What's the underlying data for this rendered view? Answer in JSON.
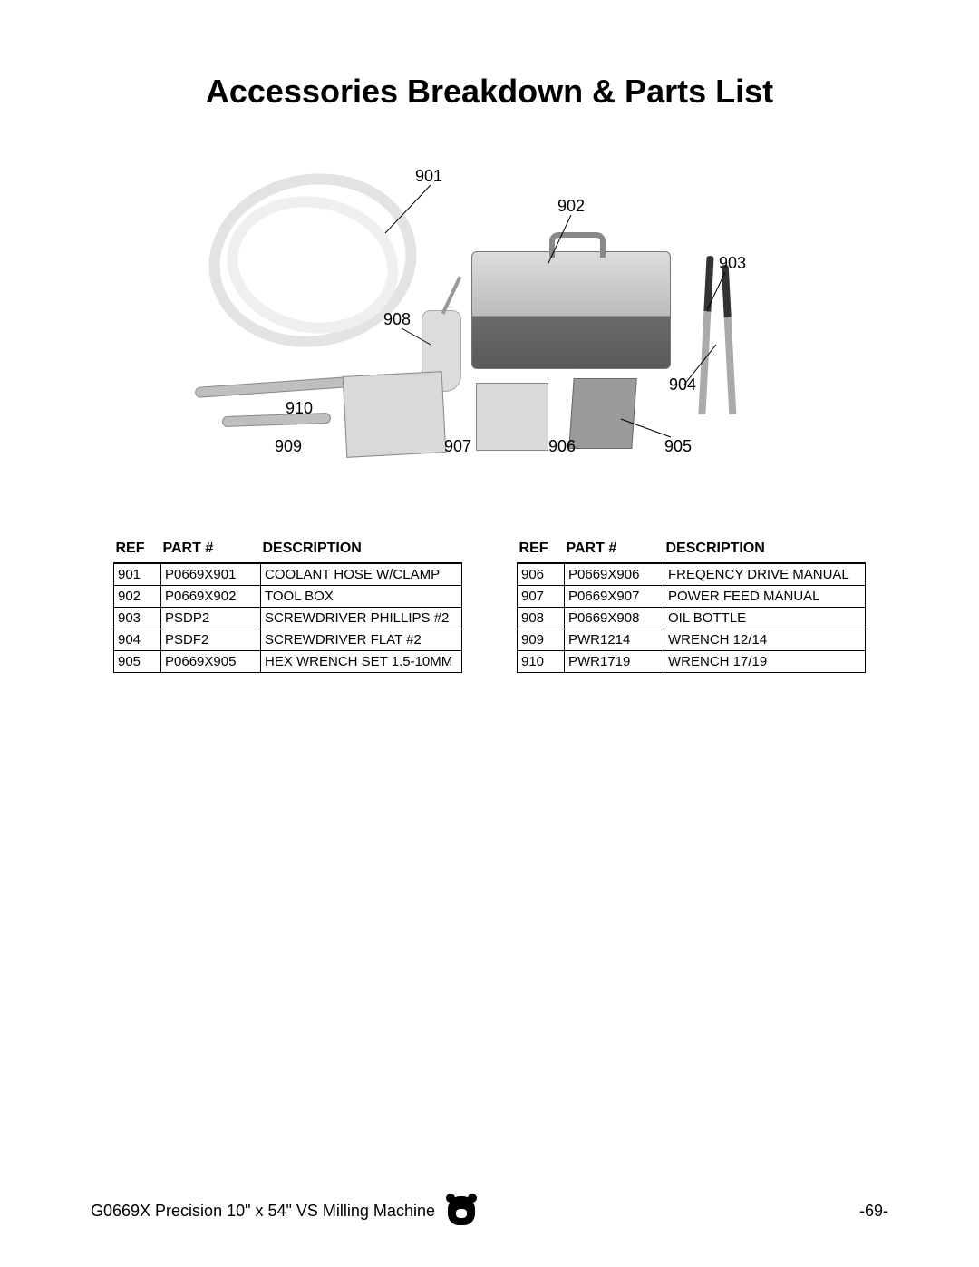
{
  "title": "Accessories Breakdown & Parts List",
  "headers": {
    "ref": "REF",
    "part": "PART #",
    "desc": "DESCRIPTION"
  },
  "table_left": [
    {
      "ref": "901",
      "part": "P0669X901",
      "desc": "COOLANT HOSE W/CLAMP"
    },
    {
      "ref": "902",
      "part": "P0669X902",
      "desc": "TOOL BOX"
    },
    {
      "ref": "903",
      "part": "PSDP2",
      "desc": "SCREWDRIVER PHILLIPS #2"
    },
    {
      "ref": "904",
      "part": "PSDF2",
      "desc": "SCREWDRIVER FLAT #2"
    },
    {
      "ref": "905",
      "part": "P0669X905",
      "desc": "HEX WRENCH SET 1.5-10MM"
    }
  ],
  "table_right": [
    {
      "ref": "906",
      "part": "P0669X906",
      "desc": "FREQENCY DRIVE MANUAL"
    },
    {
      "ref": "907",
      "part": "P0669X907",
      "desc": "POWER FEED MANUAL"
    },
    {
      "ref": "908",
      "part": "P0669X908",
      "desc": "OIL BOTTLE"
    },
    {
      "ref": "909",
      "part": "PWR1214",
      "desc": "WRENCH 12/14"
    },
    {
      "ref": "910",
      "part": "PWR1719",
      "desc": "WRENCH 17/19"
    }
  ],
  "callouts": {
    "c901": "901",
    "c902": "902",
    "c903": "903",
    "c904": "904",
    "c905": "905",
    "c906": "906",
    "c907": "907",
    "c908": "908",
    "c909": "909",
    "c910": "910"
  },
  "footer": {
    "product": "G0669X Precision 10\" x 54\" VS Milling Machine",
    "page": "-69-"
  }
}
